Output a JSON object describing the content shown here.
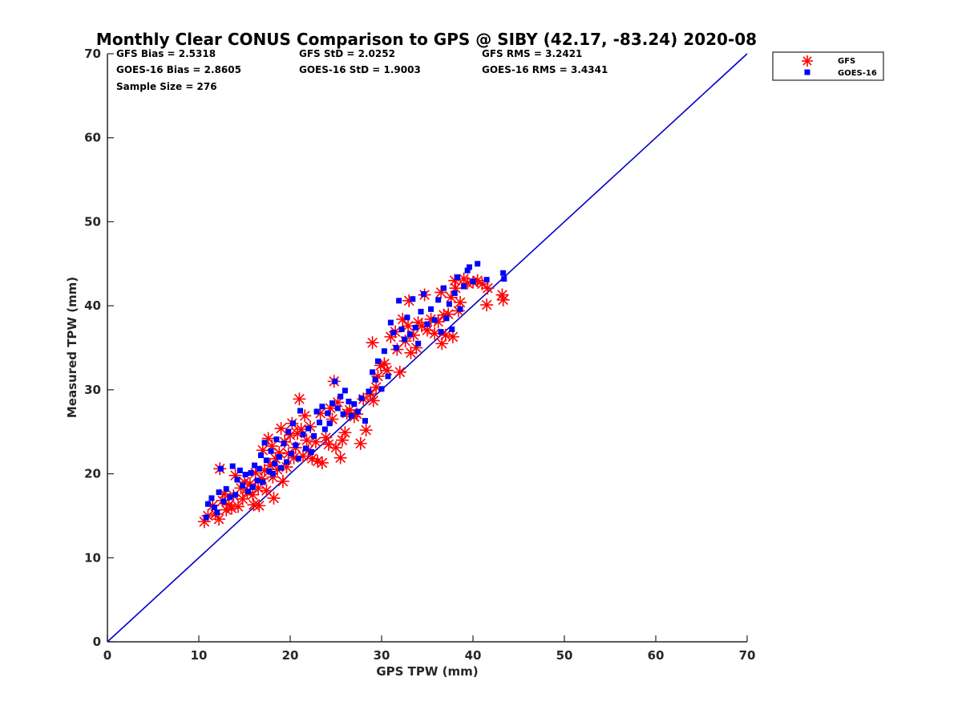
{
  "chart_data": {
    "type": "scatter",
    "title": "Monthly Clear CONUS Comparison to GPS @ SIBY (42.17, -83.24) 2020-08",
    "xlabel": "GPS TPW (mm)",
    "ylabel": "Measured TPW (mm)",
    "xlim": [
      0,
      70
    ],
    "ylim": [
      0,
      70
    ],
    "xticks": [
      0,
      10,
      20,
      30,
      40,
      50,
      60,
      70
    ],
    "yticks": [
      0,
      10,
      20,
      30,
      40,
      50,
      60,
      70
    ],
    "grid": false,
    "legend_position": "outside top-right",
    "stats": [
      [
        "GFS Bias = 2.5318",
        "GFS StD = 2.0252",
        "GFS RMS = 3.2421"
      ],
      [
        "GOES-16 Bias = 2.8605",
        "GOES-16 StD = 1.9003",
        "GOES-16 RMS = 3.4341"
      ],
      [
        "Sample Size = 276"
      ]
    ],
    "reference_line": {
      "x": [
        0,
        70
      ],
      "y": [
        0,
        70
      ],
      "color": "#0000cc"
    },
    "series": [
      {
        "name": "GFS",
        "marker": "asterisk",
        "color": "#ff0000",
        "points": [
          [
            10.6,
            14.3
          ],
          [
            11.0,
            15.0
          ],
          [
            11.5,
            16.2
          ],
          [
            11.8,
            15.2
          ],
          [
            12.2,
            14.6
          ],
          [
            12.3,
            20.6
          ],
          [
            12.6,
            16.8
          ],
          [
            12.8,
            17.6
          ],
          [
            13.0,
            15.7
          ],
          [
            13.3,
            16.3
          ],
          [
            13.6,
            15.9
          ],
          [
            13.8,
            17.4
          ],
          [
            14.0,
            19.8
          ],
          [
            14.3,
            16.1
          ],
          [
            14.6,
            18.3
          ],
          [
            14.8,
            17.0
          ],
          [
            15.0,
            19.0
          ],
          [
            15.3,
            17.8
          ],
          [
            15.6,
            18.8
          ],
          [
            15.9,
            17.5
          ],
          [
            16.0,
            16.3
          ],
          [
            16.2,
            20.1
          ],
          [
            16.5,
            18.3
          ],
          [
            16.6,
            16.2
          ],
          [
            16.9,
            19.4
          ],
          [
            17.0,
            22.8
          ],
          [
            17.2,
            20.4
          ],
          [
            17.4,
            18.0
          ],
          [
            17.6,
            24.2
          ],
          [
            17.8,
            21.0
          ],
          [
            18.0,
            23.3
          ],
          [
            18.1,
            19.6
          ],
          [
            18.2,
            17.1
          ],
          [
            18.4,
            21.8
          ],
          [
            18.6,
            20.5
          ],
          [
            18.8,
            22.5
          ],
          [
            19.0,
            25.4
          ],
          [
            19.2,
            19.1
          ],
          [
            19.4,
            23.8
          ],
          [
            19.6,
            20.8
          ],
          [
            19.8,
            22.4
          ],
          [
            20.0,
            24.6
          ],
          [
            20.2,
            26.0
          ],
          [
            20.4,
            21.9
          ],
          [
            20.6,
            23.1
          ],
          [
            20.8,
            24.8
          ],
          [
            21.0,
            28.9
          ],
          [
            21.2,
            25.3
          ],
          [
            21.4,
            22.1
          ],
          [
            21.6,
            26.9
          ],
          [
            21.8,
            24.0
          ],
          [
            22.0,
            22.8
          ],
          [
            22.2,
            25.6
          ],
          [
            22.4,
            21.8
          ],
          [
            22.8,
            23.8
          ],
          [
            23.0,
            21.5
          ],
          [
            23.3,
            27.2
          ],
          [
            23.5,
            21.3
          ],
          [
            23.9,
            24.3
          ],
          [
            24.2,
            23.5
          ],
          [
            24.4,
            27.8
          ],
          [
            24.6,
            26.5
          ],
          [
            24.8,
            31.0
          ],
          [
            25.0,
            23.1
          ],
          [
            25.2,
            28.5
          ],
          [
            25.5,
            21.9
          ],
          [
            25.7,
            24.0
          ],
          [
            26.0,
            24.9
          ],
          [
            26.2,
            27.2
          ],
          [
            26.5,
            27.6
          ],
          [
            27.0,
            26.8
          ],
          [
            27.3,
            27.1
          ],
          [
            27.7,
            23.6
          ],
          [
            28.0,
            28.9
          ],
          [
            28.3,
            25.2
          ],
          [
            28.8,
            29.5
          ],
          [
            29.0,
            35.6
          ],
          [
            29.1,
            28.7
          ],
          [
            29.4,
            30.3
          ],
          [
            29.6,
            31.6
          ],
          [
            29.9,
            32.9
          ],
          [
            30.3,
            33.1
          ],
          [
            30.6,
            32.3
          ],
          [
            31.0,
            36.3
          ],
          [
            31.5,
            36.9
          ],
          [
            31.7,
            34.8
          ],
          [
            32.0,
            32.1
          ],
          [
            32.3,
            38.4
          ],
          [
            32.6,
            35.8
          ],
          [
            32.9,
            37.6
          ],
          [
            33.0,
            40.6
          ],
          [
            33.2,
            34.4
          ],
          [
            33.5,
            36.5
          ],
          [
            33.8,
            35.0
          ],
          [
            34.0,
            38.0
          ],
          [
            34.4,
            37.6
          ],
          [
            34.7,
            41.3
          ],
          [
            35.0,
            37.1
          ],
          [
            35.4,
            38.4
          ],
          [
            35.8,
            36.7
          ],
          [
            36.2,
            38.1
          ],
          [
            36.5,
            41.6
          ],
          [
            36.6,
            35.5
          ],
          [
            36.8,
            38.9
          ],
          [
            37.0,
            36.5
          ],
          [
            37.3,
            39.0
          ],
          [
            37.6,
            41.0
          ],
          [
            37.8,
            36.3
          ],
          [
            38.0,
            43.0
          ],
          [
            38.1,
            42.1
          ],
          [
            38.4,
            39.4
          ],
          [
            38.6,
            40.4
          ],
          [
            39.0,
            43.2
          ],
          [
            39.4,
            42.7
          ],
          [
            40.0,
            42.8
          ],
          [
            40.5,
            43.0
          ],
          [
            41.0,
            42.6
          ],
          [
            41.5,
            40.1
          ],
          [
            41.6,
            42.1
          ],
          [
            43.2,
            41.3
          ],
          [
            43.3,
            40.7
          ]
        ]
      },
      {
        "name": "GOES-16",
        "marker": "square",
        "color": "#0000ff",
        "points": [
          [
            10.8,
            14.8
          ],
          [
            11.0,
            16.4
          ],
          [
            11.4,
            17.1
          ],
          [
            11.7,
            16.0
          ],
          [
            12.0,
            15.4
          ],
          [
            12.2,
            17.8
          ],
          [
            12.4,
            20.6
          ],
          [
            12.7,
            16.7
          ],
          [
            13.0,
            18.2
          ],
          [
            13.4,
            17.2
          ],
          [
            13.7,
            20.9
          ],
          [
            14.0,
            17.5
          ],
          [
            14.2,
            19.3
          ],
          [
            14.5,
            20.4
          ],
          [
            14.8,
            18.6
          ],
          [
            15.1,
            19.9
          ],
          [
            15.4,
            17.9
          ],
          [
            15.7,
            20.1
          ],
          [
            15.9,
            18.4
          ],
          [
            16.1,
            21.0
          ],
          [
            16.4,
            19.2
          ],
          [
            16.6,
            20.6
          ],
          [
            16.8,
            22.2
          ],
          [
            17.0,
            19.0
          ],
          [
            17.2,
            23.7
          ],
          [
            17.4,
            21.6
          ],
          [
            17.7,
            20.3
          ],
          [
            17.9,
            22.7
          ],
          [
            18.1,
            20.0
          ],
          [
            18.3,
            21.2
          ],
          [
            18.5,
            24.1
          ],
          [
            18.8,
            22.0
          ],
          [
            19.0,
            20.7
          ],
          [
            19.3,
            23.6
          ],
          [
            19.6,
            21.4
          ],
          [
            19.8,
            25.0
          ],
          [
            20.1,
            22.4
          ],
          [
            20.3,
            26.0
          ],
          [
            20.6,
            23.4
          ],
          [
            20.9,
            21.8
          ],
          [
            21.1,
            27.5
          ],
          [
            21.4,
            24.7
          ],
          [
            21.7,
            23.0
          ],
          [
            22.0,
            25.4
          ],
          [
            22.3,
            22.6
          ],
          [
            22.6,
            24.5
          ],
          [
            22.9,
            27.4
          ],
          [
            23.2,
            26.1
          ],
          [
            23.5,
            28.0
          ],
          [
            23.8,
            25.3
          ],
          [
            24.1,
            27.2
          ],
          [
            24.3,
            26.0
          ],
          [
            24.6,
            28.4
          ],
          [
            24.9,
            31.0
          ],
          [
            25.2,
            27.8
          ],
          [
            25.5,
            29.2
          ],
          [
            25.8,
            27.1
          ],
          [
            26.0,
            29.9
          ],
          [
            26.4,
            28.6
          ],
          [
            26.7,
            26.9
          ],
          [
            27.0,
            28.3
          ],
          [
            27.4,
            27.4
          ],
          [
            27.8,
            29.0
          ],
          [
            28.2,
            26.3
          ],
          [
            28.6,
            29.8
          ],
          [
            29.0,
            32.1
          ],
          [
            29.3,
            31.2
          ],
          [
            29.6,
            33.4
          ],
          [
            30.0,
            30.1
          ],
          [
            30.3,
            34.6
          ],
          [
            30.7,
            31.6
          ],
          [
            31.0,
            38.0
          ],
          [
            31.3,
            36.8
          ],
          [
            31.6,
            35.0
          ],
          [
            31.9,
            40.6
          ],
          [
            32.2,
            37.2
          ],
          [
            32.5,
            36.0
          ],
          [
            32.8,
            38.6
          ],
          [
            33.1,
            36.6
          ],
          [
            33.4,
            40.8
          ],
          [
            33.7,
            37.4
          ],
          [
            34.0,
            35.5
          ],
          [
            34.3,
            39.3
          ],
          [
            34.6,
            41.4
          ],
          [
            35.0,
            37.8
          ],
          [
            35.4,
            39.6
          ],
          [
            35.8,
            38.3
          ],
          [
            36.2,
            40.7
          ],
          [
            36.5,
            36.9
          ],
          [
            36.8,
            42.1
          ],
          [
            37.1,
            38.5
          ],
          [
            37.4,
            40.2
          ],
          [
            37.7,
            37.2
          ],
          [
            38.0,
            41.5
          ],
          [
            38.3,
            43.4
          ],
          [
            38.6,
            39.6
          ],
          [
            39.0,
            42.3
          ],
          [
            39.4,
            44.2
          ],
          [
            39.6,
            44.6
          ],
          [
            40.0,
            42.9
          ],
          [
            40.5,
            45.0
          ],
          [
            41.5,
            43.1
          ],
          [
            43.3,
            43.9
          ],
          [
            43.4,
            43.2
          ]
        ]
      }
    ]
  }
}
